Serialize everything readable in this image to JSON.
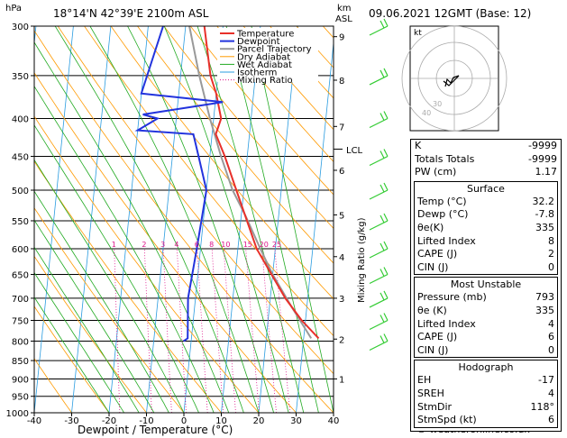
{
  "header": {
    "left_title": "18°14'N  42°39'E  2100m  ASL",
    "right_title": "09.06.2021  12GMT  (Base: 12)",
    "hpa_label": "hPa",
    "km_label": "km",
    "asl_label": "ASL",
    "lcl_label": "LCL",
    "credit": "© weatheronline.co.uk",
    "hodo_unit": "kt"
  },
  "chart_data": {
    "type": "line",
    "xlabel": "Dewpoint / Temperature (°C)",
    "ylabel_right": "Mixing Ratio (g/kg)",
    "xlim": [
      -40,
      40
    ],
    "pressure_range": [
      300,
      1000
    ],
    "x_ticks": [
      "-40",
      "-30",
      "-20",
      "-10",
      "0",
      "10",
      "20",
      "30",
      "40"
    ],
    "pressure_ticks": [
      "300",
      "350",
      "400",
      "450",
      "500",
      "550",
      "600",
      "650",
      "700",
      "750",
      "800",
      "850",
      "900",
      "950",
      "1000"
    ],
    "km_ticks": [
      "9",
      "8",
      "7",
      "6",
      "5",
      "4",
      "3",
      "2",
      "1"
    ],
    "mixing_ratio_labels": [
      "1",
      "2",
      "3",
      "4",
      "6",
      "8",
      "10",
      "15",
      "20",
      "25"
    ],
    "legend": [
      "Temperature",
      "Dewpoint",
      "Parcel Trajectory",
      "Dry Adiabat",
      "Wet Adiabat",
      "Isotherm",
      "Mixing Ratio"
    ],
    "colors": {
      "temperature": "#e8302a",
      "dewpoint": "#2233dd",
      "parcel": "#999999",
      "dry_adiabat": "#ff9a00",
      "wet_adiabat": "#22aa22",
      "isotherm": "#2a9ce0",
      "mixing_ratio": "#dd1188"
    },
    "temperature": [
      [
        793,
        34
      ],
      [
        750,
        29
      ],
      [
        700,
        24
      ],
      [
        600,
        15
      ],
      [
        500,
        8
      ],
      [
        450,
        4
      ],
      [
        420,
        1
      ],
      [
        400,
        2
      ],
      [
        370,
        0
      ],
      [
        350,
        -2
      ],
      [
        300,
        -5
      ]
    ],
    "dewpoint": [
      [
        800,
        -2
      ],
      [
        793,
        -1
      ],
      [
        700,
        -2
      ],
      [
        600,
        -1
      ],
      [
        500,
        0
      ],
      [
        450,
        -3
      ],
      [
        420,
        -5
      ],
      [
        415,
        -20
      ],
      [
        400,
        -15
      ],
      [
        395,
        -19
      ],
      [
        380,
        2
      ],
      [
        370,
        -20
      ],
      [
        300,
        -16
      ]
    ],
    "parcel": [
      [
        793,
        32
      ],
      [
        720,
        26
      ],
      [
        650,
        20
      ],
      [
        600,
        16
      ],
      [
        540,
        11
      ],
      [
        500,
        7
      ],
      [
        450,
        3
      ],
      [
        400,
        -1
      ],
      [
        350,
        -5
      ],
      [
        300,
        -9
      ]
    ],
    "wind_barb_pressures": [
      300,
      350,
      400,
      450,
      500,
      550,
      600,
      650,
      700,
      750,
      800
    ]
  },
  "indices": {
    "K": "-9999",
    "Totals Totals": "-9999",
    "PW (cm)": "1.17"
  },
  "surface": {
    "title": "Surface",
    "rows": [
      [
        "Temp (°C)",
        "32.2"
      ],
      [
        "Dewp (°C)",
        "-7.8"
      ],
      [
        "θe(K)",
        "335"
      ],
      [
        "Lifted Index",
        "8"
      ],
      [
        "CAPE (J)",
        "2"
      ],
      [
        "CIN (J)",
        "0"
      ]
    ]
  },
  "most_unstable": {
    "title": "Most Unstable",
    "rows": [
      [
        "Pressure (mb)",
        "793"
      ],
      [
        "θe (K)",
        "335"
      ],
      [
        "Lifted Index",
        "4"
      ],
      [
        "CAPE (J)",
        "6"
      ],
      [
        "CIN (J)",
        "0"
      ]
    ]
  },
  "hodograph": {
    "title": "Hodograph",
    "rows": [
      [
        "EH",
        "-17"
      ],
      [
        "SREH",
        "4"
      ],
      [
        "StmDir",
        "118°"
      ],
      [
        "StmSpd (kt)",
        "6"
      ]
    ],
    "ring_labels": [
      "40",
      "30"
    ]
  }
}
